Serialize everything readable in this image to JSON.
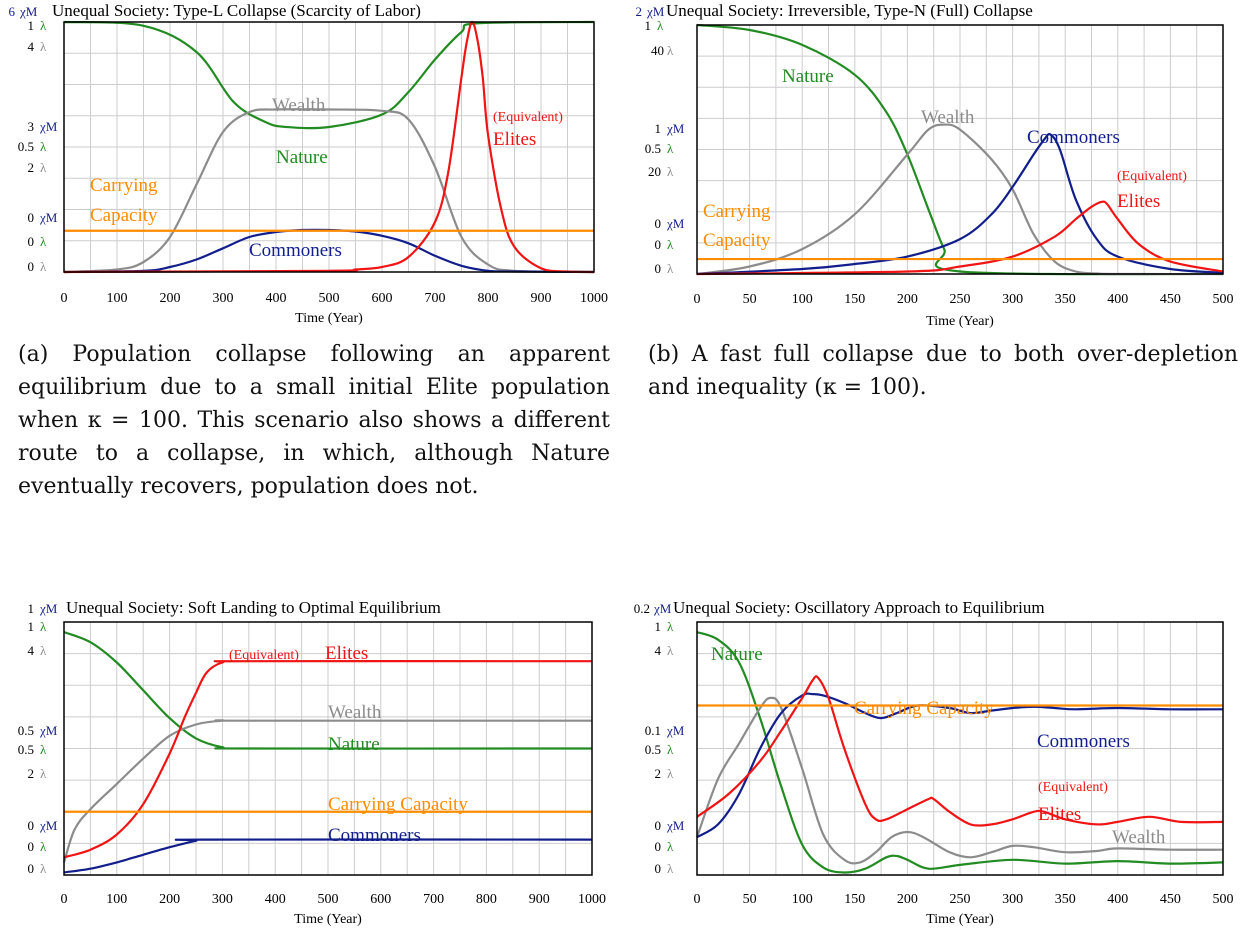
{
  "colors": {
    "nature": "#228B22",
    "wealth": "#8C8C8C",
    "elites": "#F01414",
    "commoners": "#111E8C",
    "carrying_capacity": "#FF8C00",
    "grid": "#CDCDCD"
  },
  "captions": {
    "a": "(a) Population collapse following an apparent equilibrium due to a small initial Elite population when κ = 100. This scenario also shows a different route to a collapse, in which, although Nature eventually recovers, population does not.",
    "b": "(b) A fast full collapse due to both over-depletion and inequality (κ = 100)."
  },
  "chart_data": [
    {
      "type": "line",
      "title": "Unequal Society: Type-L Collapse (Scarcity of Labor)",
      "xlabel": "Time (Year)",
      "xlim": [
        0,
        1000
      ],
      "xticks": [
        "0",
        "100",
        "200",
        "300",
        "400",
        "500",
        "600",
        "700",
        "800",
        "900",
        "1000"
      ],
      "grid": true,
      "y_scales": [
        {
          "unit": "χM",
          "top": "6",
          "mid": "3",
          "bottom": "0"
        },
        {
          "unit": "λ",
          "top": "1",
          "mid": "0.5",
          "bottom": "0"
        },
        {
          "unit": "λ",
          "top": "4",
          "mid": "2",
          "bottom": "0"
        }
      ],
      "labels": {
        "wealth": "Wealth",
        "nature": "Nature",
        "elites": "Elites",
        "elites_prefix": "(Equivalent)",
        "commoners": "Commoners",
        "carrying_capacity": [
          "Carrying",
          "Capacity"
        ]
      },
      "series": [
        {
          "name": "Nature",
          "color_key": "nature",
          "x": [
            0,
            150,
            250,
            320,
            380,
            420,
            500,
            600,
            650,
            700,
            750,
            780,
            1000
          ],
          "y": [
            1,
            0.985,
            0.88,
            0.68,
            0.6,
            0.58,
            0.58,
            0.63,
            0.72,
            0.85,
            0.96,
            0.995,
            1
          ]
        },
        {
          "name": "Wealth",
          "color_key": "wealth",
          "x": [
            0,
            100,
            150,
            200,
            250,
            300,
            350,
            400,
            500,
            600,
            650,
            700,
            750,
            800,
            850,
            1000
          ],
          "y": [
            0,
            0.01,
            0.04,
            0.14,
            0.35,
            0.56,
            0.64,
            0.65,
            0.65,
            0.645,
            0.61,
            0.42,
            0.14,
            0.03,
            0.005,
            0
          ]
        },
        {
          "name": "Commoners",
          "color_key": "commoners",
          "x": [
            0,
            150,
            200,
            250,
            300,
            350,
            400,
            450,
            500,
            550,
            600,
            650,
            700,
            750,
            800,
            850,
            1000
          ],
          "y": [
            0,
            0.005,
            0.02,
            0.05,
            0.095,
            0.14,
            0.16,
            0.168,
            0.168,
            0.162,
            0.145,
            0.115,
            0.065,
            0.025,
            0.005,
            0.002,
            0
          ]
        },
        {
          "name": "Elites",
          "color_key": "elites",
          "x": [
            0,
            500,
            550,
            600,
            650,
            700,
            725,
            750,
            760,
            770,
            780,
            790,
            800,
            825,
            850,
            900,
            950,
            1000
          ],
          "y": [
            0,
            0.005,
            0.01,
            0.02,
            0.06,
            0.2,
            0.4,
            0.78,
            0.92,
            1.0,
            0.93,
            0.78,
            0.55,
            0.25,
            0.1,
            0.015,
            0.002,
            0
          ]
        },
        {
          "name": "Carrying Capacity",
          "color_key": "carrying_capacity",
          "x": [
            0,
            1000
          ],
          "y": [
            0.165,
            0.165
          ]
        }
      ]
    },
    {
      "type": "line",
      "title": "Unequal Society: Irreversible, Type-N (Full) Collapse",
      "xlabel": "Time (Year)",
      "xlim": [
        0,
        500
      ],
      "xticks": [
        "0",
        "50",
        "100",
        "150",
        "200",
        "250",
        "300",
        "350",
        "400",
        "450",
        "500"
      ],
      "grid": true,
      "y_scales": [
        {
          "unit": "χM",
          "top": "2",
          "mid": "1",
          "bottom": "0"
        },
        {
          "unit": "λ",
          "top": "1",
          "mid": "0.5",
          "bottom": "0"
        },
        {
          "unit": "λ",
          "top": "40",
          "mid": "20",
          "bottom": "0"
        }
      ],
      "labels": {
        "nature": "Nature",
        "wealth": "Wealth",
        "commoners": "Commoners",
        "elites": "Elites",
        "elites_prefix": "(Equivalent)",
        "carrying_capacity": [
          "Carrying",
          "Capacity"
        ]
      },
      "series": [
        {
          "name": "Nature",
          "color_key": "nature",
          "x": [
            0,
            50,
            100,
            150,
            180,
            200,
            220,
            235,
            250,
            500
          ],
          "y": [
            1,
            0.98,
            0.92,
            0.8,
            0.65,
            0.48,
            0.26,
            0.1,
            0.01,
            0
          ]
        },
        {
          "name": "Wealth",
          "color_key": "wealth",
          "x": [
            0,
            50,
            100,
            150,
            200,
            220,
            235,
            250,
            280,
            300,
            320,
            340,
            360,
            380,
            400,
            500
          ],
          "y": [
            0,
            0.03,
            0.1,
            0.24,
            0.48,
            0.58,
            0.6,
            0.58,
            0.46,
            0.34,
            0.16,
            0.05,
            0.01,
            0.002,
            0,
            0
          ]
        },
        {
          "name": "Commoners",
          "color_key": "commoners",
          "x": [
            0,
            100,
            150,
            200,
            250,
            280,
            300,
            320,
            330,
            336,
            345,
            360,
            380,
            400,
            450,
            500
          ],
          "y": [
            0,
            0.02,
            0.04,
            0.07,
            0.14,
            0.24,
            0.35,
            0.48,
            0.54,
            0.56,
            0.5,
            0.3,
            0.14,
            0.07,
            0.02,
            0.005
          ]
        },
        {
          "name": "Elites",
          "color_key": "elites",
          "x": [
            0,
            200,
            250,
            300,
            340,
            360,
            375,
            385,
            390,
            400,
            420,
            450,
            500
          ],
          "y": [
            0,
            0.01,
            0.03,
            0.07,
            0.15,
            0.22,
            0.27,
            0.29,
            0.28,
            0.22,
            0.12,
            0.05,
            0.01
          ]
        },
        {
          "name": "Carrying Capacity",
          "color_key": "carrying_capacity",
          "x": [
            0,
            500
          ],
          "y": [
            0.06,
            0.06
          ]
        }
      ]
    },
    {
      "type": "line",
      "title": "Unequal Society: Soft Landing to Optimal Equilibrium",
      "xlabel": "Time (Year)",
      "xlim": [
        0,
        1000
      ],
      "xticks": [
        "0",
        "100",
        "200",
        "300",
        "400",
        "500",
        "600",
        "700",
        "800",
        "900",
        "1000"
      ],
      "grid": true,
      "y_scales": [
        {
          "unit": "χM",
          "top": "1",
          "mid": "0.5",
          "bottom": "0"
        },
        {
          "unit": "λ",
          "top": "1",
          "mid": "0.5",
          "bottom": "0"
        },
        {
          "unit": "λ",
          "top": "4",
          "mid": "2",
          "bottom": "0"
        }
      ],
      "labels": {
        "elites_prefix": "(Equivalent)",
        "elites": "Elites",
        "wealth": "Wealth",
        "nature": "Nature",
        "carrying_capacity": "Carrying Capacity",
        "commoners": "Commoners"
      },
      "series": [
        {
          "name": "Nature",
          "color_key": "nature",
          "x": [
            0,
            50,
            100,
            150,
            200,
            250,
            300,
            350,
            1000
          ],
          "y": [
            0.96,
            0.92,
            0.84,
            0.73,
            0.62,
            0.54,
            0.505,
            0.5,
            0.5
          ]
        },
        {
          "name": "Wealth",
          "color_key": "wealth",
          "x": [
            0,
            20,
            50,
            100,
            150,
            200,
            250,
            300,
            350,
            1000
          ],
          "y": [
            0.05,
            0.18,
            0.26,
            0.36,
            0.46,
            0.55,
            0.595,
            0.61,
            0.61,
            0.61
          ]
        },
        {
          "name": "Elites",
          "color_key": "elites",
          "x": [
            0,
            50,
            100,
            150,
            200,
            230,
            250,
            270,
            300,
            350,
            1000
          ],
          "y": [
            0.07,
            0.1,
            0.16,
            0.28,
            0.48,
            0.63,
            0.72,
            0.8,
            0.84,
            0.845,
            0.845
          ]
        },
        {
          "name": "Commoners",
          "color_key": "commoners",
          "x": [
            0,
            50,
            100,
            150,
            200,
            250,
            270,
            1000
          ],
          "y": [
            0.01,
            0.025,
            0.05,
            0.08,
            0.11,
            0.135,
            0.14,
            0.14
          ]
        },
        {
          "name": "Carrying Capacity",
          "color_key": "carrying_capacity",
          "x": [
            0,
            1000
          ],
          "y": [
            0.25,
            0.25
          ]
        }
      ]
    },
    {
      "type": "line",
      "title": "Unequal Society: Oscillatory Approach to Equilibrium",
      "xlabel": "Time (Year)",
      "xlim": [
        0,
        500
      ],
      "xticks": [
        "0",
        "50",
        "100",
        "150",
        "200",
        "250",
        "300",
        "350",
        "400",
        "450",
        "500"
      ],
      "grid": true,
      "y_scales": [
        {
          "unit": "χM",
          "top": "0.2",
          "mid": "0.1",
          "bottom": "0"
        },
        {
          "unit": "λ",
          "top": "1",
          "mid": "0.5",
          "bottom": "0"
        },
        {
          "unit": "λ",
          "top": "4",
          "mid": "2",
          "bottom": "0"
        }
      ],
      "labels": {
        "nature": "Nature",
        "carrying_capacity": "Carrying Capacity",
        "commoners": "Commoners",
        "elites_prefix": "(Equivalent)",
        "elites": "Elites",
        "wealth": "Wealth"
      },
      "series": [
        {
          "name": "Nature",
          "color_key": "nature",
          "x": [
            0,
            20,
            40,
            60,
            80,
            100,
            120,
            140,
            160,
            180,
            190,
            200,
            220,
            250,
            300,
            350,
            400,
            450,
            500
          ],
          "y": [
            0.96,
            0.93,
            0.84,
            0.62,
            0.35,
            0.12,
            0.03,
            0.01,
            0.025,
            0.07,
            0.075,
            0.06,
            0.025,
            0.04,
            0.06,
            0.045,
            0.055,
            0.045,
            0.05
          ]
        },
        {
          "name": "Wealth",
          "color_key": "wealth",
          "x": [
            0,
            20,
            40,
            60,
            70,
            80,
            100,
            120,
            140,
            155,
            170,
            185,
            200,
            215,
            240,
            260,
            280,
            300,
            320,
            350,
            380,
            400,
            450,
            500
          ],
          "y": [
            0.15,
            0.38,
            0.52,
            0.66,
            0.7,
            0.66,
            0.42,
            0.16,
            0.06,
            0.05,
            0.09,
            0.15,
            0.17,
            0.15,
            0.09,
            0.07,
            0.09,
            0.115,
            0.11,
            0.09,
            0.095,
            0.105,
            0.1,
            0.1
          ]
        },
        {
          "name": "Commoners",
          "color_key": "commoners",
          "x": [
            0,
            20,
            40,
            60,
            80,
            100,
            110,
            120,
            140,
            160,
            175,
            190,
            210,
            240,
            260,
            280,
            300,
            320,
            340,
            360,
            400,
            450,
            500
          ],
          "y": [
            0.15,
            0.2,
            0.32,
            0.5,
            0.64,
            0.71,
            0.715,
            0.71,
            0.68,
            0.64,
            0.62,
            0.64,
            0.67,
            0.66,
            0.64,
            0.65,
            0.66,
            0.665,
            0.66,
            0.655,
            0.66,
            0.655,
            0.655
          ]
        },
        {
          "name": "Elites",
          "color_key": "elites",
          "x": [
            0,
            30,
            60,
            80,
            100,
            110,
            115,
            125,
            140,
            160,
            170,
            180,
            200,
            220,
            225,
            240,
            260,
            280,
            300,
            320,
            330,
            350,
            380,
            400,
            430,
            460,
            500
          ],
          "y": [
            0.23,
            0.32,
            0.45,
            0.57,
            0.7,
            0.77,
            0.78,
            0.7,
            0.5,
            0.28,
            0.22,
            0.22,
            0.26,
            0.3,
            0.3,
            0.25,
            0.2,
            0.2,
            0.22,
            0.25,
            0.25,
            0.22,
            0.2,
            0.21,
            0.23,
            0.21,
            0.21
          ]
        },
        {
          "name": "Carrying Capacity",
          "color_key": "carrying_capacity",
          "x": [
            0,
            500
          ],
          "y": [
            0.67,
            0.67
          ]
        }
      ]
    }
  ]
}
